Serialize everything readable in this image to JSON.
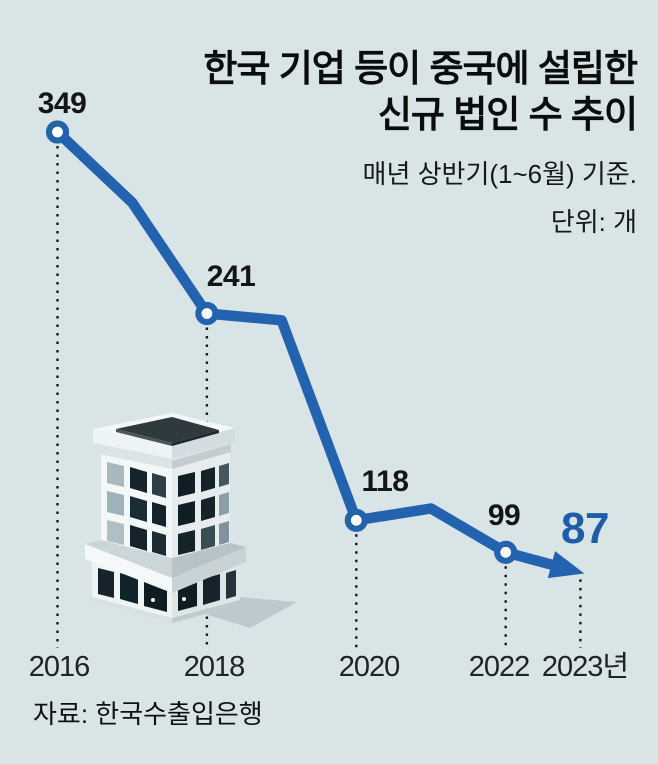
{
  "chart_data": {
    "type": "line",
    "title_lines": [
      "한국 기업 등이 중국에 설립한",
      "신규 법인 수 추이"
    ],
    "subtitle": "매년 상반기(1~6월) 기준.",
    "unit_label": "단위: 개",
    "source": "자료: 한국수출입은행",
    "x_tick_labels": [
      "2016",
      "2018",
      "2020",
      "2022",
      "2023년"
    ],
    "xlabel": "",
    "ylabel": "",
    "ylim": [
      80,
      360
    ],
    "grid": false,
    "legend": "none",
    "series": [
      {
        "name": "중국 설립 신규 법인 수",
        "x": [
          2016,
          2017,
          2018,
          2019,
          2020,
          2021,
          2022,
          2023
        ],
        "values": [
          349,
          307,
          241,
          237,
          118,
          125,
          99,
          87
        ],
        "estimated_unlabeled_years": [
          2017,
          2019,
          2021
        ],
        "labeled_points": [
          {
            "year": 2016,
            "value": 349
          },
          {
            "year": 2018,
            "value": 241
          },
          {
            "year": 2020,
            "value": 118
          },
          {
            "year": 2022,
            "value": 99
          },
          {
            "year": 2023,
            "value": 87
          }
        ]
      }
    ],
    "colors": {
      "line": "#2262af",
      "value_accent": "#1d5dab",
      "background": "#d8e4e6",
      "text": "#0b0c0c",
      "guide_dash": "#17191a"
    },
    "annotations": {
      "last_point_style": "arrowhead",
      "illustration": "office-building"
    }
  }
}
